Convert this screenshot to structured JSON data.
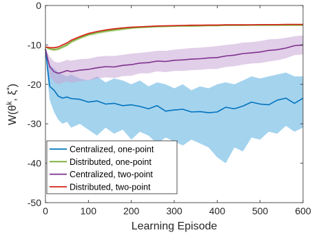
{
  "chart_data": {
    "type": "line",
    "title": "",
    "xlabel": "Learning Episode",
    "ylabel_parts": [
      "W(θ",
      "k",
      ", ξ",
      "*",
      ")"
    ],
    "xlim": [
      0,
      600
    ],
    "ylim": [
      -50,
      0
    ],
    "xticks": [
      0,
      100,
      200,
      300,
      400,
      500,
      600
    ],
    "yticks": [
      -50,
      -40,
      -30,
      -20,
      -10,
      0
    ],
    "grid": false,
    "legend_position": "bottom-left",
    "x": [
      0,
      5,
      10,
      20,
      30,
      40,
      50,
      60,
      80,
      100,
      120,
      140,
      160,
      180,
      200,
      220,
      240,
      260,
      280,
      300,
      320,
      340,
      360,
      380,
      400,
      420,
      440,
      460,
      480,
      500,
      520,
      540,
      560,
      580,
      600
    ],
    "series": [
      {
        "name": "Centralized, one-point",
        "color": "#0072BD",
        "band_color": "#5AAEE0",
        "mean": [
          -11,
          -16,
          -20.5,
          -21.5,
          -23,
          -23.5,
          -23.2,
          -23.6,
          -23.8,
          -24.5,
          -24.2,
          -25,
          -24.8,
          -25.4,
          -25.2,
          -25.6,
          -26.2,
          -25.4,
          -26.8,
          -26.5,
          -26.3,
          -27,
          -26.9,
          -27.2,
          -27,
          -25.8,
          -26.2,
          -25.5,
          -24.5,
          -25,
          -25.2,
          -24,
          -23.5,
          -24.8,
          -23.5
        ],
        "upper": [
          -11,
          -13,
          -15,
          -16,
          -17,
          -17.5,
          -18,
          -17.5,
          -18.5,
          -19,
          -18,
          -19.5,
          -18.5,
          -19,
          -20,
          -19,
          -20.5,
          -19.5,
          -20,
          -21,
          -20,
          -21.5,
          -20.5,
          -21,
          -20,
          -19.5,
          -20,
          -19,
          -18,
          -18.5,
          -18,
          -17.5,
          -17,
          -18,
          -18
        ],
        "lower": [
          -11,
          -19,
          -24,
          -27,
          -29,
          -30,
          -29.5,
          -31,
          -30,
          -31.5,
          -33,
          -31,
          -32.5,
          -31.5,
          -34,
          -32,
          -33,
          -35,
          -33.5,
          -34.5,
          -35.5,
          -34,
          -35,
          -36,
          -38.5,
          -40,
          -36,
          -37,
          -33.5,
          -34,
          -32,
          -32.5,
          -30.5,
          -32,
          -31
        ]
      },
      {
        "name": "Distributed, one-point",
        "color": "#77AC30",
        "band_color": "#A6CC7A",
        "mean": [
          -10.5,
          -10.8,
          -11,
          -11.2,
          -11,
          -10.5,
          -10,
          -9.2,
          -8.2,
          -7.4,
          -6.9,
          -6.5,
          -6.2,
          -5.9,
          -5.7,
          -5.55,
          -5.45,
          -5.35,
          -5.3,
          -5.25,
          -5.2,
          -5.2,
          -5.15,
          -5.1,
          -5.1,
          -5.05,
          -5.05,
          -5.05,
          -5.0,
          -5.0,
          -5.0,
          -5.0,
          -5.0,
          -5.0,
          -5.0
        ],
        "upper": [
          -10.5,
          -10.6,
          -10.7,
          -10.8,
          -10.6,
          -10.1,
          -9.6,
          -8.8,
          -7.8,
          -7.0,
          -6.5,
          -6.1,
          -5.8,
          -5.5,
          -5.4,
          -5.3,
          -5.2,
          -5.15,
          -5.1,
          -5.05,
          -5.0,
          -5.0,
          -4.95,
          -4.9,
          -4.9,
          -4.9,
          -4.9,
          -4.9,
          -4.85,
          -4.85,
          -4.85,
          -4.85,
          -4.85,
          -4.85,
          -4.85
        ],
        "lower": [
          -10.5,
          -11.0,
          -11.3,
          -11.6,
          -11.4,
          -10.9,
          -10.4,
          -9.6,
          -8.6,
          -7.8,
          -7.3,
          -6.9,
          -6.6,
          -6.3,
          -6.0,
          -5.8,
          -5.7,
          -5.55,
          -5.5,
          -5.45,
          -5.4,
          -5.4,
          -5.35,
          -5.3,
          -5.3,
          -5.2,
          -5.2,
          -5.2,
          -5.15,
          -5.15,
          -5.15,
          -5.15,
          -5.15,
          -5.15,
          -5.15
        ]
      },
      {
        "name": "Centralized, two-point",
        "color": "#7E2F8E",
        "band_color": "#C9A6D6",
        "mean": [
          -11,
          -13.5,
          -15.5,
          -16.8,
          -17.2,
          -16.9,
          -16.5,
          -16.8,
          -16.4,
          -16.2,
          -15.8,
          -15.5,
          -15.6,
          -15.2,
          -15,
          -14.6,
          -14.5,
          -14.1,
          -14.2,
          -13.9,
          -13.8,
          -13.6,
          -13.5,
          -13.3,
          -13.2,
          -12.8,
          -12.6,
          -12.2,
          -12,
          -11.8,
          -11.4,
          -11.2,
          -10.8,
          -10.2,
          -10
        ],
        "upper": [
          -11,
          -12.0,
          -13.0,
          -14.2,
          -14.5,
          -14.2,
          -13.8,
          -14.0,
          -13.6,
          -13.5,
          -13.0,
          -12.8,
          -12.8,
          -12.5,
          -12.2,
          -12.0,
          -11.8,
          -11.5,
          -11.5,
          -11.2,
          -11.0,
          -10.8,
          -10.7,
          -10.5,
          -10.3,
          -10.0,
          -9.8,
          -9.4,
          -9.3,
          -9.0,
          -8.6,
          -8.5,
          -8.2,
          -7.8,
          -7.6
        ],
        "lower": [
          -11,
          -15.0,
          -18.0,
          -19.4,
          -20.0,
          -19.6,
          -19.2,
          -19.6,
          -19.2,
          -19.0,
          -18.6,
          -18.2,
          -18.4,
          -17.9,
          -17.8,
          -17.2,
          -17.2,
          -16.7,
          -16.9,
          -16.6,
          -16.6,
          -16.4,
          -16.3,
          -16.1,
          -16.1,
          -15.6,
          -15.4,
          -15.0,
          -14.7,
          -14.6,
          -14.2,
          -13.9,
          -13.4,
          -12.6,
          -12.4
        ]
      },
      {
        "name": "Distributed, two-point",
        "color": "#D62019",
        "band_color": "#EE9A96",
        "mean": [
          -10.5,
          -10.6,
          -10.7,
          -10.7,
          -10.5,
          -10.0,
          -9.5,
          -8.8,
          -7.9,
          -7.1,
          -6.6,
          -6.2,
          -5.9,
          -5.7,
          -5.5,
          -5.4,
          -5.3,
          -5.2,
          -5.15,
          -5.1,
          -5.05,
          -5.0,
          -5.0,
          -4.95,
          -4.95,
          -4.9,
          -4.9,
          -4.9,
          -4.9,
          -4.85,
          -4.85,
          -4.85,
          -4.8,
          -4.8,
          -4.8
        ],
        "upper": [
          -10.5,
          -10.45,
          -10.5,
          -10.5,
          -10.3,
          -9.8,
          -9.3,
          -8.6,
          -7.7,
          -6.9,
          -6.45,
          -6.05,
          -5.75,
          -5.55,
          -5.35,
          -5.25,
          -5.15,
          -5.05,
          -5.0,
          -4.95,
          -4.9,
          -4.85,
          -4.85,
          -4.8,
          -4.8,
          -4.75,
          -4.75,
          -4.75,
          -4.75,
          -4.7,
          -4.7,
          -4.7,
          -4.65,
          -4.65,
          -4.65
        ],
        "lower": [
          -10.5,
          -10.75,
          -10.9,
          -10.9,
          -10.7,
          -10.2,
          -9.7,
          -9.0,
          -8.1,
          -7.3,
          -6.75,
          -6.35,
          -6.05,
          -5.85,
          -5.65,
          -5.55,
          -5.45,
          -5.35,
          -5.3,
          -5.25,
          -5.2,
          -5.15,
          -5.15,
          -5.1,
          -5.1,
          -5.05,
          -5.05,
          -5.05,
          -5.05,
          -5.0,
          -5.0,
          -5.0,
          -4.95,
          -4.95,
          -4.95
        ]
      }
    ]
  }
}
